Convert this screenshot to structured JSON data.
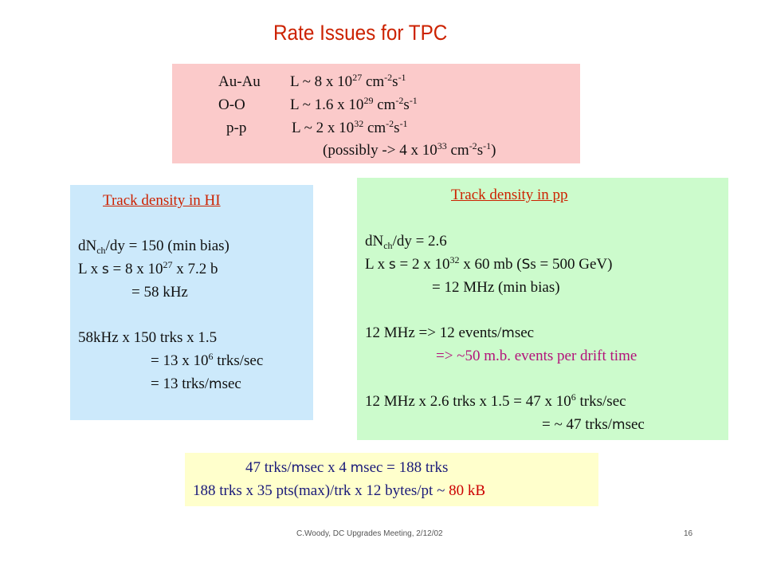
{
  "title": "Rate Issues for TPC",
  "luminosity": {
    "rows": [
      {
        "system": "Au-Au",
        "lum": "L ~  8 x 10",
        "exp": "27",
        "unit_cm": " cm",
        "cm_exp": "-2",
        "unit_s": "s",
        "s_exp": "-1"
      },
      {
        "system": "O-O",
        "lum": "L ~  1.6 x 10",
        "exp": "29",
        "unit_cm": " cm",
        "cm_exp": "-2",
        "unit_s": "s",
        "s_exp": "-1"
      },
      {
        "system": "p-p",
        "lum": "L ~  2 x 10",
        "exp": "32",
        "unit_cm": " cm",
        "cm_exp": "-2",
        "unit_s": "s",
        "s_exp": "-1"
      }
    ],
    "possibly_pre": "(possibly -> 4 x 10",
    "possibly_exp": "33",
    "possibly_cm": " cm",
    "possibly_cm_exp": "-2",
    "possibly_s": "s",
    "possibly_s_exp": "-1",
    "possibly_close": ")"
  },
  "hi": {
    "heading": "Track density in HI",
    "dn_pre": "dN",
    "dn_sub": "ch",
    "dn_post": "/dy = 150 (min bias)",
    "lx_pre": "L x ",
    "lx_sym": "s",
    "lx_mid": " = 8 x 10",
    "lx_exp": "27",
    "lx_post": " x 7.2 b",
    "rate": "= 58 kHz",
    "trk_line": "58kHz x 150 trks x 1.5",
    "trk_eq1_pre": "= 13 x 10",
    "trk_eq1_exp": "6",
    "trk_eq1_post": " trks/sec",
    "trk_eq2_pre": "= 13 trks/",
    "trk_eq2_sym": "m",
    "trk_eq2_post": "sec"
  },
  "pp": {
    "heading": "Track density in pp",
    "dn_pre": "dN",
    "dn_sub": "ch",
    "dn_post": "/dy = 2.6",
    "lx_pre": "L x ",
    "lx_sym": "s",
    "lx_mid": "  = 2 x 10",
    "lx_exp": "32",
    "lx_mid2": " x 60 mb (",
    "lx_sym2": "S",
    "lx_post": "s  = 500 GeV)",
    "rate": "= 12  MHz (min bias)",
    "events_pre": "12 MHz => 12 events/",
    "events_sym": "m",
    "events_post": "sec",
    "drift_pre": "=> ~",
    "drift_post": "50 m.b. events per drift time",
    "trk_line_pre": "12 MHz x 2.6 trks x 1.5  = 47 x 10",
    "trk_line_exp": "6",
    "trk_line_post": " trks/sec",
    "trk_eq_pre": "= ~ 47 trks/",
    "trk_eq_sym": "m",
    "trk_eq_post": "sec"
  },
  "summary": {
    "line1_a": "47 trks/",
    "line1_sym1": "m",
    "line1_b": "sec x 4 ",
    "line1_sym2": "m",
    "line1_c": "sec = 188 trks",
    "line2_pre": "188 trks x 35 pts(max)/trk x 12 bytes/pt ~ ",
    "line2_value": "80 kB"
  },
  "footer": {
    "text": "C.Woody, DC Upgrades Meeting, 2/12/02",
    "page": "16"
  },
  "colors": {
    "title": "#cc2200",
    "pink_box": "#fbcaca",
    "blue_box": "#cce9fb",
    "green_box": "#ccfbcc",
    "yellow_box": "#ffffcc",
    "magenta_text": "#b3127a",
    "navy_text": "#1a1a7a",
    "red_value": "#cc0000"
  }
}
